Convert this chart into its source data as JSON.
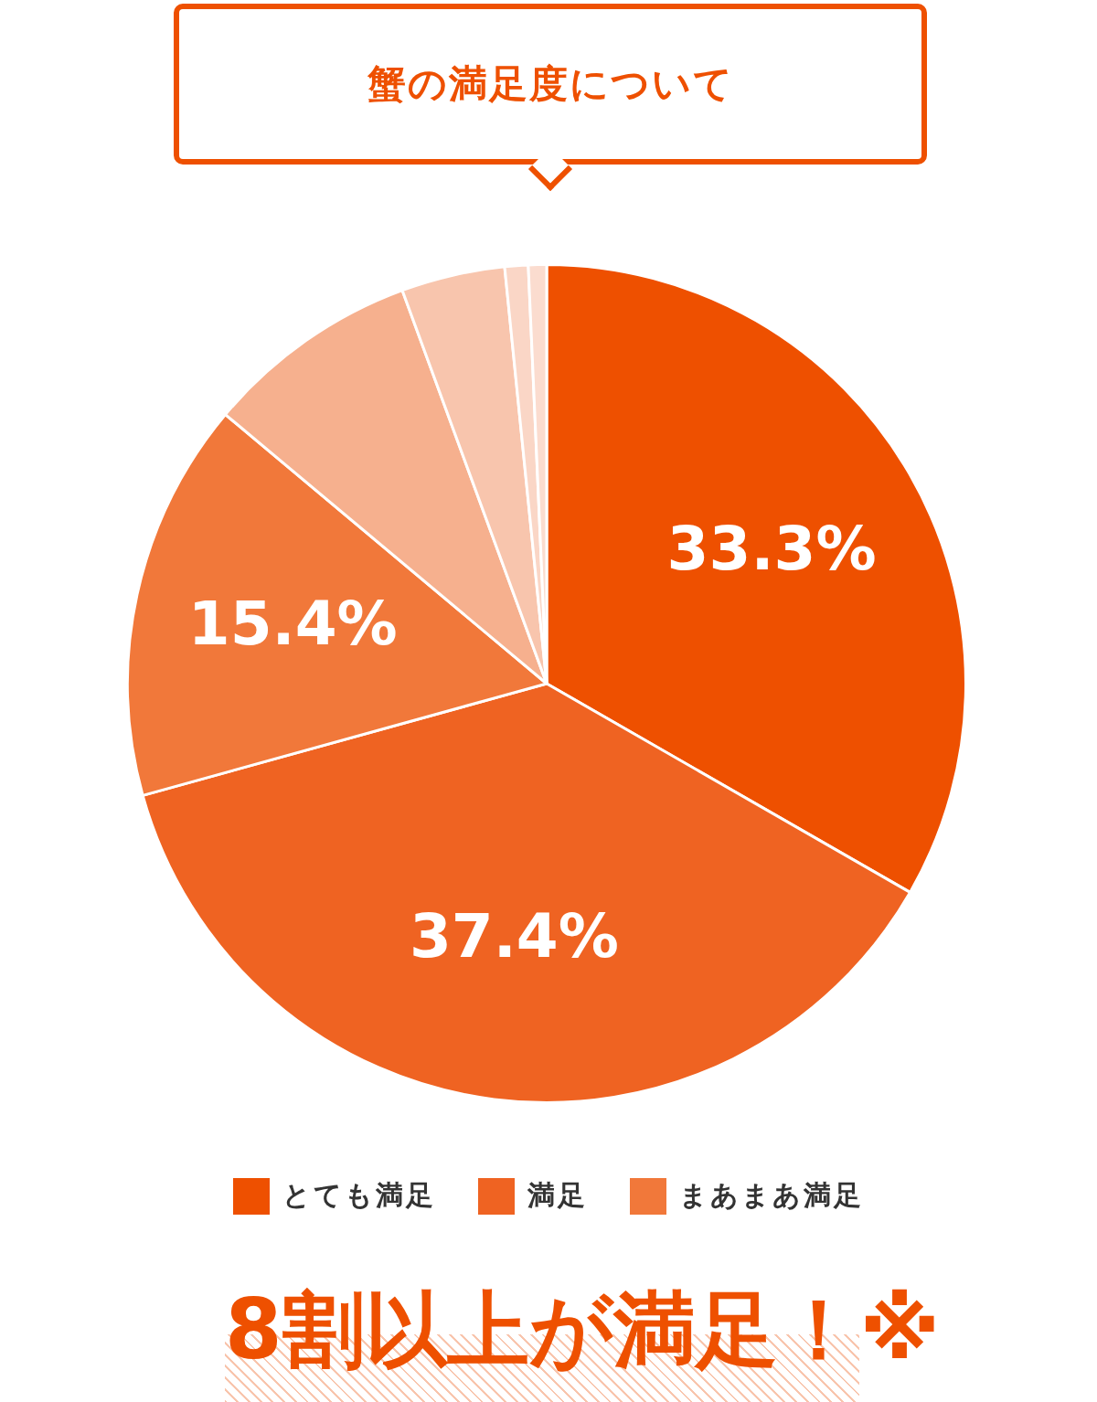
{
  "chart_data": {
    "type": "pie",
    "title": "蟹の満足度について",
    "categories": [
      "とても満足",
      "満足",
      "まあまあ満足",
      null,
      null,
      null,
      null
    ],
    "values": [
      33.3,
      37.4,
      15.4,
      8.3,
      4.0,
      0.9,
      0.7
    ],
    "colors": [
      "#ee5000",
      "#ef6322",
      "#f1783a",
      "#f6b08e",
      "#f8c5ad",
      "#fad6c6",
      "#fbdccf"
    ],
    "value_labels": [
      "33.3%",
      "37.4%",
      "15.4%",
      null,
      null,
      null,
      null
    ],
    "legend": "bottom",
    "annotations": [
      "8割以上が満足！※"
    ]
  }
}
